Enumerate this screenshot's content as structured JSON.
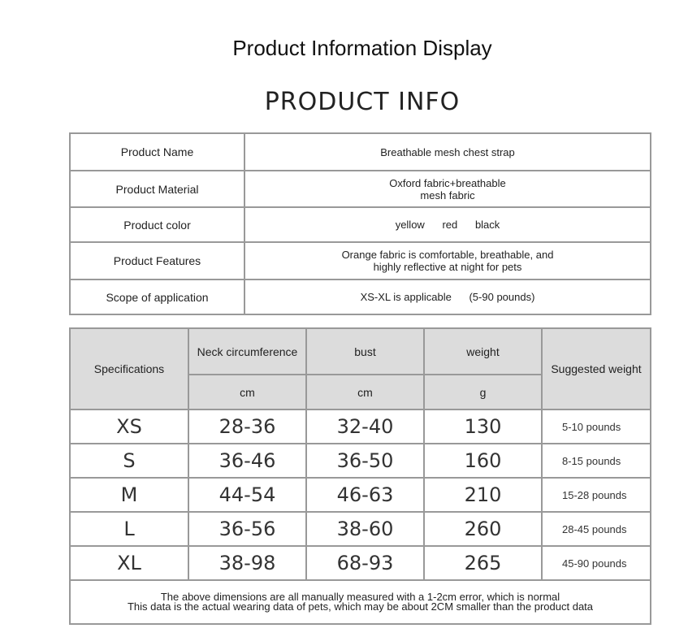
{
  "title": "Product Information Display",
  "subtitle": "PRODUCT INFO",
  "info": [
    {
      "label": "Product Name",
      "value": "Breathable mesh chest strap"
    },
    {
      "label": "Product Material",
      "value": "Oxford fabric+breathable mesh fabric"
    },
    {
      "label": "Product color",
      "value": "yellow      red      black"
    },
    {
      "label": "Product Features",
      "value": "Orange fabric is comfortable, breathable, and highly reflective at night for pets"
    },
    {
      "label": "Scope of application",
      "value": "XS-XL is applicable      (5-90 pounds)"
    }
  ],
  "size_table": {
    "headers": {
      "spec": "Specifications",
      "neck": "Neck circumference",
      "bust": "bust",
      "weight": "weight",
      "suggested": "Suggested weight"
    },
    "units": {
      "neck": "cm",
      "bust": "cm",
      "weight": "g"
    },
    "rows": [
      {
        "size": "XS",
        "neck": "28-36",
        "bust": "32-40",
        "weight": "130",
        "suggested": "5-10 pounds"
      },
      {
        "size": "S",
        "neck": "36-46",
        "bust": "36-50",
        "weight": "160",
        "suggested": "8-15 pounds"
      },
      {
        "size": "M",
        "neck": "44-54",
        "bust": "46-63",
        "weight": "210",
        "suggested": "15-28 pounds"
      },
      {
        "size": "L",
        "neck": "36-56",
        "bust": "38-60",
        "weight": "260",
        "suggested": "28-45 pounds"
      },
      {
        "size": "XL",
        "neck": "38-98",
        "bust": "68-93",
        "weight": "265",
        "suggested": "45-90 pounds"
      }
    ],
    "note": [
      "The above dimensions are all manually measured with a 1-2cm error, which is normal",
      "This data is the actual wearing data of pets, which may be about 2CM smaller than the product data"
    ]
  }
}
